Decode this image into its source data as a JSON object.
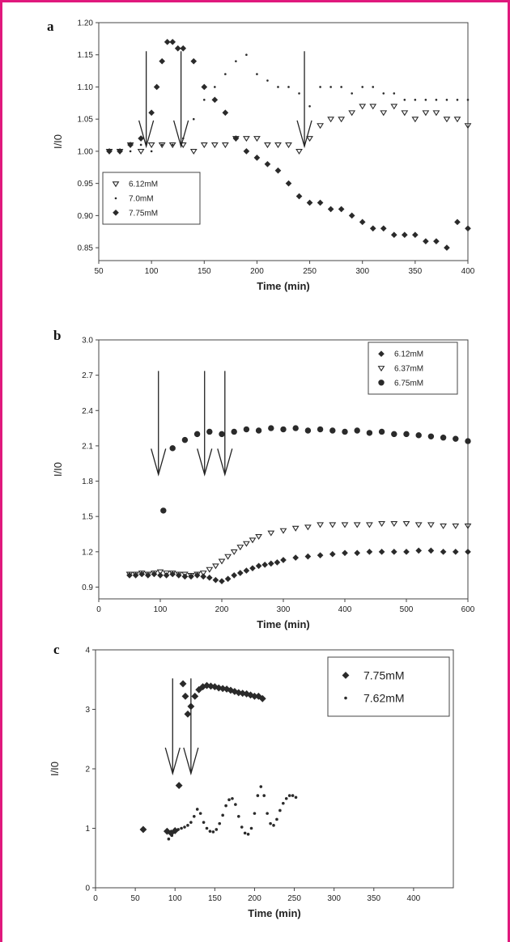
{
  "colors": {
    "frame": "#e0197d",
    "ink": "#2a2a2a"
  },
  "chart_data": [
    {
      "panel": "a",
      "type": "scatter",
      "xlabel": "Time (min)",
      "ylabel": "I/I0",
      "xlim": [
        50,
        400
      ],
      "ylim": [
        0.83,
        1.2
      ],
      "xticks": [
        50,
        100,
        150,
        200,
        250,
        300,
        350,
        400
      ],
      "yticks": [
        0.85,
        0.9,
        0.95,
        1.0,
        1.05,
        1.1,
        1.15,
        1.2
      ],
      "ytick_labels": [
        "0.85",
        "0.90",
        "0.95",
        "1.00",
        "1.05",
        "1.10",
        "1.15",
        "1.20"
      ],
      "legend_position": "bottom-left",
      "arrows_at_x": [
        95,
        128,
        245
      ],
      "series": [
        {
          "name": "6.12mM",
          "marker": "triangle-down",
          "x": [
            60,
            70,
            80,
            90,
            100,
            110,
            120,
            130,
            140,
            150,
            160,
            170,
            180,
            190,
            200,
            210,
            220,
            230,
            240,
            250,
            260,
            270,
            280,
            290,
            300,
            310,
            320,
            330,
            340,
            350,
            360,
            370,
            380,
            390,
            400
          ],
          "y": [
            1.0,
            1.0,
            1.01,
            1.0,
            1.01,
            1.01,
            1.01,
            1.01,
            1.0,
            1.01,
            1.01,
            1.01,
            1.02,
            1.02,
            1.02,
            1.01,
            1.01,
            1.01,
            1.0,
            1.02,
            1.04,
            1.05,
            1.05,
            1.06,
            1.07,
            1.07,
            1.06,
            1.07,
            1.06,
            1.05,
            1.06,
            1.06,
            1.05,
            1.05,
            1.04
          ]
        },
        {
          "name": "7.0mM",
          "marker": "dot",
          "x": [
            60,
            70,
            80,
            90,
            100,
            110,
            120,
            130,
            140,
            150,
            160,
            170,
            180,
            190,
            200,
            210,
            220,
            230,
            240,
            250,
            260,
            270,
            280,
            290,
            300,
            310,
            320,
            330,
            340,
            350,
            360,
            370,
            380,
            390,
            400
          ],
          "y": [
            1.0,
            1.0,
            1.0,
            1.01,
            1.0,
            1.01,
            1.01,
            1.02,
            1.05,
            1.08,
            1.1,
            1.12,
            1.14,
            1.15,
            1.12,
            1.11,
            1.1,
            1.1,
            1.09,
            1.07,
            1.1,
            1.1,
            1.1,
            1.09,
            1.1,
            1.1,
            1.09,
            1.09,
            1.08,
            1.08,
            1.08,
            1.08,
            1.08,
            1.08,
            1.08
          ]
        },
        {
          "name": "7.75mM",
          "marker": "diamond",
          "x": [
            60,
            70,
            80,
            90,
            100,
            105,
            110,
            115,
            120,
            125,
            130,
            140,
            150,
            160,
            170,
            180,
            190,
            200,
            210,
            220,
            230,
            240,
            250,
            260,
            270,
            280,
            290,
            300,
            310,
            320,
            330,
            340,
            350,
            360,
            370,
            380,
            390,
            400
          ],
          "y": [
            1.0,
            1.0,
            1.01,
            1.02,
            1.06,
            1.1,
            1.14,
            1.17,
            1.17,
            1.16,
            1.16,
            1.14,
            1.1,
            1.08,
            1.06,
            1.02,
            1.0,
            0.99,
            0.98,
            0.97,
            0.95,
            0.93,
            0.92,
            0.92,
            0.91,
            0.91,
            0.9,
            0.89,
            0.88,
            0.88,
            0.87,
            0.87,
            0.87,
            0.86,
            0.86,
            0.85,
            0.89,
            0.88
          ]
        }
      ]
    },
    {
      "panel": "b",
      "type": "scatter",
      "xlabel": "Time (min)",
      "ylabel": "I/I0",
      "xlim": [
        0,
        600
      ],
      "ylim": [
        0.8,
        3.0
      ],
      "xticks": [
        0,
        100,
        200,
        300,
        400,
        500,
        600
      ],
      "yticks": [
        0.9,
        1.2,
        1.5,
        1.8,
        2.1,
        2.4,
        2.7,
        3.0
      ],
      "ytick_labels": [
        "0.9",
        "1.2",
        "1.5",
        "1.8",
        "2.1",
        "2.4",
        "2.7",
        "3.0"
      ],
      "legend_position": "top-right",
      "arrows_at_x": [
        97,
        172,
        205
      ],
      "series": [
        {
          "name": "6.12mM",
          "marker": "diamond",
          "x": [
            50,
            60,
            70,
            80,
            90,
            100,
            110,
            120,
            130,
            140,
            150,
            160,
            170,
            180,
            190,
            200,
            210,
            220,
            230,
            240,
            250,
            260,
            270,
            280,
            290,
            300,
            320,
            340,
            360,
            380,
            400,
            420,
            440,
            460,
            480,
            500,
            520,
            540,
            560,
            580,
            600
          ],
          "y": [
            1.0,
            1.0,
            1.01,
            1.0,
            1.01,
            1.0,
            1.0,
            1.01,
            1.0,
            0.99,
            0.99,
            1.0,
            0.99,
            0.98,
            0.96,
            0.95,
            0.97,
            1.0,
            1.02,
            1.04,
            1.06,
            1.08,
            1.09,
            1.1,
            1.11,
            1.13,
            1.15,
            1.16,
            1.17,
            1.18,
            1.19,
            1.19,
            1.2,
            1.2,
            1.2,
            1.2,
            1.21,
            1.21,
            1.2,
            1.2,
            1.2
          ]
        },
        {
          "name": "6.37mM",
          "marker": "triangle-down",
          "x": [
            50,
            60,
            70,
            80,
            90,
            100,
            110,
            120,
            130,
            140,
            150,
            160,
            170,
            180,
            190,
            200,
            210,
            220,
            230,
            240,
            250,
            260,
            280,
            300,
            320,
            340,
            360,
            380,
            400,
            420,
            440,
            460,
            480,
            500,
            520,
            540,
            560,
            580,
            600
          ],
          "y": [
            1.01,
            1.01,
            1.02,
            1.01,
            1.02,
            1.03,
            1.02,
            1.02,
            1.01,
            1.01,
            1.0,
            1.01,
            1.02,
            1.05,
            1.08,
            1.12,
            1.16,
            1.2,
            1.24,
            1.27,
            1.3,
            1.33,
            1.36,
            1.38,
            1.4,
            1.41,
            1.43,
            1.43,
            1.43,
            1.43,
            1.43,
            1.44,
            1.44,
            1.44,
            1.43,
            1.43,
            1.42,
            1.42,
            1.42
          ]
        },
        {
          "name": "6.75mM",
          "marker": "circle",
          "x": [
            105,
            120,
            140,
            160,
            180,
            200,
            220,
            240,
            260,
            280,
            300,
            320,
            340,
            360,
            380,
            400,
            420,
            440,
            460,
            480,
            500,
            520,
            540,
            560,
            580,
            600
          ],
          "y": [
            1.55,
            2.08,
            2.15,
            2.2,
            2.22,
            2.2,
            2.22,
            2.24,
            2.23,
            2.25,
            2.24,
            2.25,
            2.23,
            2.24,
            2.23,
            2.22,
            2.23,
            2.21,
            2.22,
            2.2,
            2.2,
            2.19,
            2.18,
            2.17,
            2.16,
            2.14
          ]
        }
      ]
    },
    {
      "panel": "c",
      "type": "scatter",
      "xlabel": "Time (min)",
      "ylabel": "I/I0",
      "xlim": [
        0,
        450
      ],
      "ylim": [
        0,
        4
      ],
      "xticks": [
        0,
        50,
        100,
        150,
        200,
        250,
        300,
        350,
        400
      ],
      "yticks": [
        0,
        1,
        2,
        3,
        4
      ],
      "ytick_labels": [
        "0",
        "1",
        "2",
        "3",
        "4"
      ],
      "legend_position": "top-right",
      "arrows_at_x": [
        97,
        120
      ],
      "series": [
        {
          "name": "7.75mM",
          "marker": "diamond",
          "x": [
            60,
            90,
            95,
            100,
            105,
            110,
            113,
            116,
            120,
            125,
            130,
            135,
            140,
            145,
            150,
            155,
            160,
            165,
            170,
            175,
            180,
            185,
            190,
            195,
            200,
            205,
            210
          ],
          "y": [
            0.98,
            0.95,
            0.92,
            0.96,
            1.72,
            3.43,
            3.22,
            2.92,
            3.05,
            3.22,
            3.33,
            3.38,
            3.4,
            3.39,
            3.38,
            3.36,
            3.35,
            3.34,
            3.32,
            3.3,
            3.28,
            3.27,
            3.26,
            3.24,
            3.22,
            3.22,
            3.18
          ]
        },
        {
          "name": "7.62mM",
          "marker": "dot",
          "x": [
            92,
            96,
            100,
            104,
            108,
            112,
            116,
            120,
            124,
            128,
            132,
            136,
            140,
            144,
            148,
            152,
            156,
            160,
            164,
            168,
            172,
            176,
            180,
            184,
            188,
            192,
            196,
            200,
            204,
            208,
            212,
            216,
            220,
            224,
            228,
            232,
            236,
            240,
            244,
            248,
            252
          ],
          "y": [
            0.82,
            0.88,
            0.95,
            0.98,
            1.0,
            1.02,
            1.05,
            1.1,
            1.2,
            1.32,
            1.25,
            1.1,
            1.0,
            0.95,
            0.94,
            0.98,
            1.08,
            1.22,
            1.38,
            1.48,
            1.5,
            1.4,
            1.2,
            1.02,
            0.92,
            0.9,
            1.0,
            1.25,
            1.55,
            1.7,
            1.55,
            1.25,
            1.08,
            1.05,
            1.15,
            1.3,
            1.42,
            1.5,
            1.55,
            1.55,
            1.52
          ]
        }
      ]
    }
  ]
}
